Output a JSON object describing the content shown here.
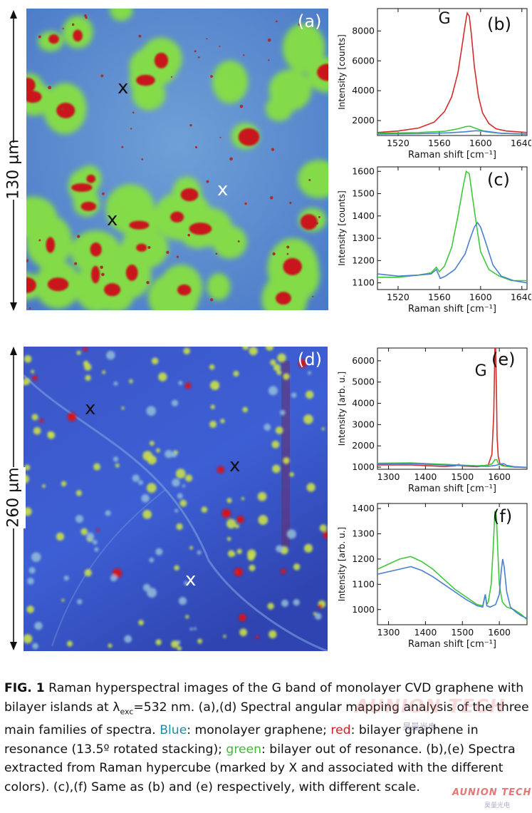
{
  "figure": {
    "panel_labels": {
      "a": "(a)",
      "b": "(b)",
      "c": "(c)",
      "d": "(d)",
      "e": "(e)",
      "f": "(f)"
    },
    "scalebars": {
      "top": "130 µm",
      "bottom": "260 µm"
    },
    "markers": {
      "symbol": "X"
    },
    "band_label": "G",
    "colors": {
      "monolayer": "#4a7fd0",
      "resonance": "#d42a2a",
      "out_of_resonance": "#3ec83a",
      "map_blue": "#4d78d8",
      "map_green": "#7fe03a",
      "map_red": "#c01010"
    }
  },
  "caption": {
    "fig_label": "FIG. 1",
    "part1": " Raman hyperspectral images of the G band of monolayer CVD graphene with bilayer islands at λ",
    "subscript": "exc",
    "part2": "=532 nm. (a),(d) Spectral angular mapping analysis of the three main families of spectra. ",
    "blue_word": "Blue",
    "part3": ": monolayer graphene; ",
    "red_word": "red",
    "part4": ": bilayer graphene in resonance (13.5º rotated stacking); ",
    "green_word": "green",
    "part5": ": bilayer out of resonance. (b),(e) Spectra extracted from Raman hypercube (marked by X and associated with the different colors). (c),(f) Same as (b) and (e) respectively, with different scale."
  },
  "watermark": {
    "brand": "AUNION TECH",
    "sub": "昊量光电"
  },
  "chart_data": [
    {
      "id": "b",
      "type": "line",
      "xlabel": "Raman shift [cm⁻¹]",
      "ylabel": "Intensity [counts]",
      "xlim": [
        1500,
        1645
      ],
      "ylim": [
        1000,
        9500
      ],
      "xticks": [
        1520,
        1560,
        1600,
        1640
      ],
      "yticks": [
        2000,
        4000,
        6000,
        8000
      ],
      "annotation": {
        "text": "G",
        "x": 1565,
        "y": 8500
      },
      "series": [
        {
          "color": "#d42a2a",
          "x": [
            1500,
            1520,
            1540,
            1555,
            1565,
            1572,
            1578,
            1582,
            1585,
            1587,
            1589,
            1591,
            1594,
            1598,
            1602,
            1608,
            1615,
            1625,
            1645
          ],
          "y": [
            1200,
            1300,
            1500,
            1900,
            2600,
            3600,
            5200,
            7000,
            8400,
            9200,
            9000,
            7800,
            5600,
            3600,
            2500,
            1800,
            1450,
            1300,
            1200
          ]
        },
        {
          "color": "#3ec83a",
          "x": [
            1500,
            1540,
            1565,
            1578,
            1586,
            1590,
            1595,
            1605,
            1620,
            1645
          ],
          "y": [
            1150,
            1200,
            1280,
            1450,
            1600,
            1620,
            1480,
            1250,
            1150,
            1100
          ]
        },
        {
          "color": "#4a7fd0",
          "x": [
            1500,
            1540,
            1570,
            1585,
            1595,
            1605,
            1620,
            1645
          ],
          "y": [
            1100,
            1120,
            1180,
            1250,
            1320,
            1280,
            1150,
            1100
          ]
        }
      ]
    },
    {
      "id": "c",
      "type": "line",
      "xlabel": "Raman shift [cm⁻¹]",
      "ylabel": "Intensity [counts]",
      "xlim": [
        1500,
        1645
      ],
      "ylim": [
        1070,
        1620
      ],
      "xticks": [
        1520,
        1560,
        1600,
        1640
      ],
      "yticks": [
        1100,
        1200,
        1300,
        1400,
        1500,
        1600
      ],
      "series": [
        {
          "color": "#3ec83a",
          "x": [
            1500,
            1520,
            1540,
            1552,
            1557,
            1560,
            1565,
            1572,
            1578,
            1583,
            1586,
            1589,
            1592,
            1596,
            1600,
            1608,
            1618,
            1630,
            1645
          ],
          "y": [
            1125,
            1125,
            1135,
            1145,
            1170,
            1150,
            1175,
            1260,
            1400,
            1530,
            1600,
            1590,
            1490,
            1360,
            1240,
            1160,
            1130,
            1110,
            1110
          ]
        },
        {
          "color": "#4a7fd0",
          "x": [
            1500,
            1520,
            1540,
            1552,
            1557,
            1561,
            1566,
            1575,
            1585,
            1590,
            1594,
            1597,
            1600,
            1605,
            1612,
            1620,
            1632,
            1645
          ],
          "y": [
            1140,
            1130,
            1135,
            1140,
            1160,
            1120,
            1130,
            1160,
            1230,
            1300,
            1350,
            1370,
            1350,
            1280,
            1180,
            1130,
            1110,
            1100
          ]
        }
      ]
    },
    {
      "id": "e",
      "type": "line",
      "xlabel": "Raman shift [cm⁻¹]",
      "ylabel": "Intensity [arb. u.]",
      "xlim": [
        1270,
        1675
      ],
      "ylim": [
        900,
        6600
      ],
      "xticks": [
        1300,
        1400,
        1500,
        1600
      ],
      "yticks": [
        1000,
        2000,
        3000,
        4000,
        5000,
        6000
      ],
      "annotation": {
        "text": "G",
        "x": 1550,
        "y": 5300
      },
      "series": [
        {
          "color": "#d42a2a",
          "x": [
            1270,
            1360,
            1450,
            1480,
            1490,
            1500,
            1540,
            1570,
            1580,
            1585,
            1588,
            1590,
            1592,
            1594,
            1597,
            1602,
            1615,
            1640,
            1675
          ],
          "y": [
            1100,
            1100,
            1030,
            1060,
            1130,
            1050,
            1020,
            1100,
            1600,
            3500,
            6600,
            6600,
            4800,
            2400,
            1500,
            1150,
            1050,
            1000,
            980
          ]
        },
        {
          "color": "#3ec83a",
          "x": [
            1270,
            1360,
            1450,
            1540,
            1565,
            1580,
            1588,
            1593,
            1598,
            1610,
            1640,
            1675
          ],
          "y": [
            1180,
            1200,
            1130,
            1060,
            1080,
            1150,
            1350,
            1350,
            1150,
            1050,
            1000,
            980
          ]
        },
        {
          "color": "#4a7fd0",
          "x": [
            1270,
            1360,
            1450,
            1540,
            1570,
            1590,
            1605,
            1612,
            1620,
            1640,
            1675
          ],
          "y": [
            1150,
            1160,
            1100,
            1040,
            1040,
            1080,
            1150,
            1160,
            1080,
            1020,
            990
          ]
        }
      ]
    },
    {
      "id": "f",
      "type": "line",
      "xlabel": "Raman shift [cm⁻¹]",
      "ylabel": "Intensity [arb. u.]",
      "xlim": [
        1270,
        1675
      ],
      "ylim": [
        940,
        1420
      ],
      "xticks": [
        1300,
        1400,
        1500,
        1600
      ],
      "yticks": [
        1000,
        1100,
        1200,
        1300,
        1400
      ],
      "series": [
        {
          "color": "#3ec83a",
          "x": [
            1270,
            1300,
            1330,
            1360,
            1390,
            1420,
            1450,
            1480,
            1510,
            1540,
            1555,
            1562,
            1566,
            1570,
            1578,
            1584,
            1588,
            1592,
            1596,
            1600,
            1608,
            1620,
            1640,
            1660,
            1675
          ],
          "y": [
            1160,
            1180,
            1200,
            1210,
            1190,
            1160,
            1120,
            1080,
            1050,
            1020,
            1015,
            1060,
            1020,
            1030,
            1100,
            1260,
            1390,
            1370,
            1230,
            1100,
            1030,
            1010,
            1000,
            980,
            960
          ]
        },
        {
          "color": "#4a7fd0",
          "x": [
            1270,
            1300,
            1330,
            1360,
            1390,
            1420,
            1450,
            1480,
            1510,
            1540,
            1555,
            1562,
            1566,
            1575,
            1590,
            1600,
            1605,
            1609,
            1613,
            1620,
            1630,
            1645,
            1660,
            1675
          ],
          "y": [
            1140,
            1150,
            1160,
            1170,
            1155,
            1130,
            1100,
            1070,
            1040,
            1015,
            1010,
            1060,
            1015,
            1010,
            1020,
            1060,
            1150,
            1200,
            1170,
            1070,
            1010,
            990,
            975,
            965
          ]
        }
      ]
    }
  ]
}
